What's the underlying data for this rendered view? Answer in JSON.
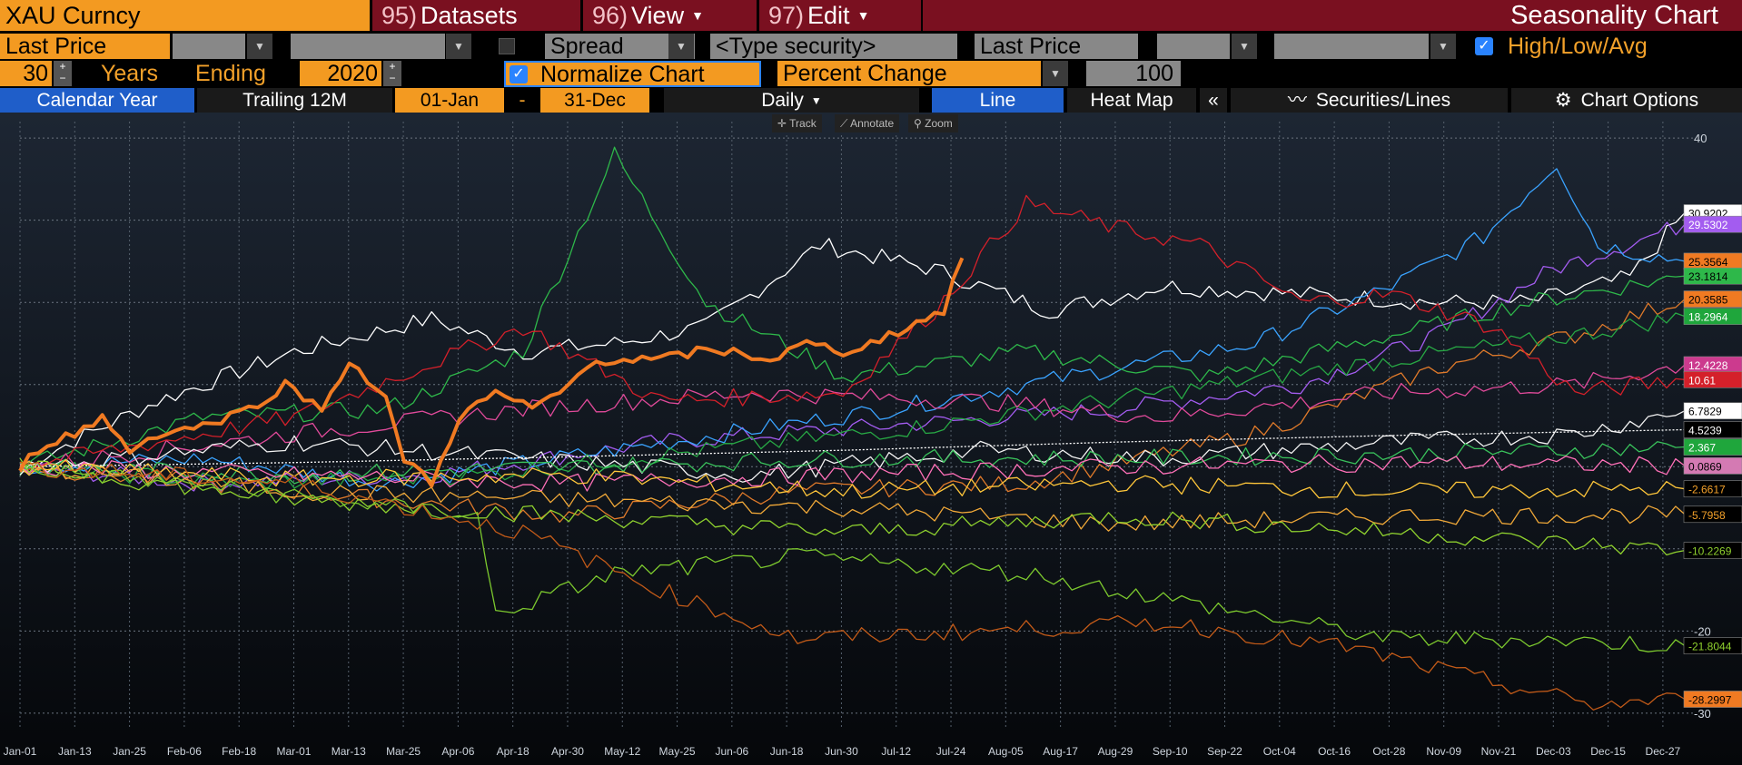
{
  "header": {
    "ticker": "XAU Curncy",
    "menus": [
      {
        "num": "95)",
        "label": "Datasets"
      },
      {
        "num": "96)",
        "label": "View"
      },
      {
        "num": "97)",
        "label": "Edit"
      }
    ],
    "title": "Seasonality Chart"
  },
  "row2": {
    "field1": "Last Price",
    "spread": "Spread",
    "security_placeholder": "<Type security>",
    "field2": "Last Price",
    "hla": "High/Low/Avg"
  },
  "row3": {
    "years": "30",
    "years_label": "Years",
    "ending_label": "Ending",
    "ending_year": "2020",
    "normalize": "Normalize Chart",
    "mode": "Percent Change",
    "base": "100"
  },
  "row4": {
    "calendar_year": "Calendar Year",
    "trailing": "Trailing 12M",
    "start": "01-Jan",
    "dash": "-",
    "end": "31-Dec",
    "freq": "Daily",
    "line": "Line",
    "heatmap": "Heat Map",
    "collapse": "«",
    "securities": "Securities/Lines",
    "options": "Chart Options"
  },
  "tools": {
    "track": "Track",
    "annotate": "Annotate",
    "zoom": "Zoom"
  },
  "chart_data": {
    "type": "line",
    "title": "Seasonality Chart",
    "xlabel": "",
    "ylabel": "",
    "ylim": [
      -32,
      42
    ],
    "y_ticks": [
      40,
      30,
      20,
      10,
      0,
      -10,
      -20,
      -30
    ],
    "y_tick_labels": [
      "40",
      "",
      "",
      "",
      "",
      "",
      "-20",
      "-30"
    ],
    "x_ticks": [
      "Jan-01",
      "Jan-13",
      "Jan-25",
      "Feb-06",
      "Feb-18",
      "Mar-01",
      "Mar-13",
      "Mar-25",
      "Apr-06",
      "Apr-18",
      "Apr-30",
      "May-12",
      "May-25",
      "Jun-06",
      "Jun-18",
      "Jun-30",
      "Jul-12",
      "Jul-24",
      "Aug-05",
      "Aug-17",
      "Aug-29",
      "Sep-10",
      "Sep-22",
      "Oct-04",
      "Oct-16",
      "Oct-28",
      "Nov-09",
      "Nov-21",
      "Dec-03",
      "Dec-15",
      "Dec-27"
    ],
    "series": [
      {
        "name": "2020",
        "color": "#f07a22",
        "bold": true,
        "points": [
          [
            0,
            0
          ],
          [
            6,
            3
          ],
          [
            12,
            4
          ],
          [
            18,
            6
          ],
          [
            24,
            2
          ],
          [
            30,
            4
          ],
          [
            40,
            5
          ],
          [
            50,
            7
          ],
          [
            58,
            10
          ],
          [
            66,
            7
          ],
          [
            72,
            13
          ],
          [
            80,
            8
          ],
          [
            84,
            1
          ],
          [
            90,
            -2
          ],
          [
            96,
            6
          ],
          [
            104,
            9
          ],
          [
            112,
            7
          ],
          [
            118,
            9
          ],
          [
            126,
            13
          ],
          [
            132,
            13
          ],
          [
            140,
            13
          ],
          [
            148,
            14
          ],
          [
            156,
            14
          ],
          [
            164,
            13
          ],
          [
            172,
            15
          ],
          [
            180,
            14
          ],
          [
            186,
            15
          ],
          [
            194,
            17
          ],
          [
            202,
            19
          ],
          [
            206,
            25.4
          ]
        ],
        "end_label": ""
      },
      {
        "name": "s-white-top",
        "color": "#ffffff",
        "points": [
          [
            0,
            0
          ],
          [
            30,
            8
          ],
          [
            60,
            14
          ],
          [
            90,
            18
          ],
          [
            110,
            14
          ],
          [
            130,
            15
          ],
          [
            150,
            17
          ],
          [
            175,
            27
          ],
          [
            200,
            24
          ],
          [
            225,
            19
          ],
          [
            250,
            22
          ],
          [
            280,
            21
          ],
          [
            310,
            20
          ],
          [
            330,
            20
          ],
          [
            352,
            23
          ],
          [
            364,
            30.9
          ]
        ],
        "end_label": "30.9202",
        "label_bg": "#ffffff",
        "label_fg": "#000"
      },
      {
        "name": "s-violet",
        "color": "#a35cf0",
        "points": [
          [
            0,
            0
          ],
          [
            40,
            -2
          ],
          [
            90,
            -1
          ],
          [
            140,
            3
          ],
          [
            190,
            5
          ],
          [
            240,
            7
          ],
          [
            280,
            10
          ],
          [
            310,
            16
          ],
          [
            335,
            24
          ],
          [
            364,
            29.5
          ]
        ],
        "end_label": "29.5302",
        "label_bg": "#a35cf0",
        "label_fg": "#fff"
      },
      {
        "name": "s-blue",
        "color": "#3aa3ff",
        "points": [
          [
            0,
            0
          ],
          [
            40,
            1
          ],
          [
            80,
            -2
          ],
          [
            130,
            2
          ],
          [
            190,
            7
          ],
          [
            240,
            12
          ],
          [
            270,
            15
          ],
          [
            300,
            22
          ],
          [
            320,
            28
          ],
          [
            336,
            37
          ],
          [
            345,
            27
          ],
          [
            364,
            25
          ]
        ],
        "end_label": "25.3564",
        "label_bg": "#f07a22",
        "label_fg": "#000"
      },
      {
        "name": "s-green2",
        "color": "#2eb84a",
        "points": [
          [
            0,
            0
          ],
          [
            40,
            6
          ],
          [
            80,
            7
          ],
          [
            110,
            14
          ],
          [
            130,
            38
          ],
          [
            150,
            20
          ],
          [
            180,
            11
          ],
          [
            220,
            14
          ],
          [
            260,
            11
          ],
          [
            300,
            16
          ],
          [
            330,
            20
          ],
          [
            364,
            23.2
          ]
        ],
        "end_label": "23.1814",
        "label_bg": "#2eb84a",
        "label_fg": "#000"
      },
      {
        "name": "s-orange2",
        "color": "#e07a2a",
        "points": [
          [
            0,
            0
          ],
          [
            60,
            -3
          ],
          [
            120,
            -6
          ],
          [
            170,
            -3
          ],
          [
            220,
            -2
          ],
          [
            270,
            4
          ],
          [
            310,
            12
          ],
          [
            340,
            16
          ],
          [
            364,
            20.4
          ]
        ],
        "end_label": "20.3585",
        "label_bg": "#f07a22",
        "label_fg": "#000"
      },
      {
        "name": "s-green",
        "color": "#27a844",
        "points": [
          [
            0,
            0
          ],
          [
            50,
            -2
          ],
          [
            100,
            -1
          ],
          [
            150,
            2
          ],
          [
            200,
            5
          ],
          [
            250,
            9
          ],
          [
            300,
            13
          ],
          [
            340,
            16
          ],
          [
            364,
            18.3
          ]
        ],
        "end_label": "18.2964",
        "label_bg": "#1fa63c",
        "label_fg": "#fff"
      },
      {
        "name": "s-magenta",
        "color": "#e04a9a",
        "points": [
          [
            0,
            0
          ],
          [
            60,
            4
          ],
          [
            110,
            7
          ],
          [
            160,
            9
          ],
          [
            210,
            8
          ],
          [
            250,
            6
          ],
          [
            300,
            9
          ],
          [
            340,
            10
          ],
          [
            364,
            12.4
          ]
        ],
        "end_label": "12.4228",
        "label_bg": "#cc3a8e",
        "label_fg": "#fff"
      },
      {
        "name": "s-red",
        "color": "#d4202a",
        "points": [
          [
            0,
            0
          ],
          [
            60,
            6
          ],
          [
            110,
            17
          ],
          [
            140,
            8
          ],
          [
            180,
            9
          ],
          [
            200,
            19
          ],
          [
            220,
            32
          ],
          [
            240,
            29
          ],
          [
            258,
            27
          ],
          [
            280,
            20
          ],
          [
            300,
            21
          ],
          [
            322,
            17
          ],
          [
            340,
            9
          ],
          [
            364,
            10.6
          ]
        ],
        "end_label": "10.61",
        "label_bg": "#d4202a",
        "label_fg": "#fff"
      },
      {
        "name": "s-white2",
        "color": "#f2f2f2",
        "points": [
          [
            0,
            0
          ],
          [
            60,
            3
          ],
          [
            110,
            1
          ],
          [
            160,
            -1
          ],
          [
            210,
            2
          ],
          [
            250,
            1
          ],
          [
            300,
            3
          ],
          [
            340,
            4
          ],
          [
            364,
            6.8
          ]
        ],
        "end_label": "6.7829",
        "label_bg": "#ffffff",
        "label_fg": "#000"
      },
      {
        "name": "avg",
        "color": "#ffffff",
        "dashed": true,
        "points": [
          [
            0,
            0
          ],
          [
            60,
            0.5
          ],
          [
            120,
            1.2
          ],
          [
            180,
            2
          ],
          [
            240,
            3
          ],
          [
            300,
            3.8
          ],
          [
            364,
            4.5
          ]
        ],
        "end_label": "4.5239",
        "label_bg": "#000",
        "label_fg": "#fff"
      },
      {
        "name": "s-green3",
        "color": "#39c25b",
        "points": [
          [
            0,
            0
          ],
          [
            60,
            -1
          ],
          [
            120,
            0
          ],
          [
            180,
            1
          ],
          [
            240,
            1
          ],
          [
            300,
            1.5
          ],
          [
            364,
            2.4
          ]
        ],
        "end_label": "2.367",
        "label_bg": "#1fa63c",
        "label_fg": "#fff"
      },
      {
        "name": "s-pink",
        "color": "#ff70b8",
        "points": [
          [
            0,
            0
          ],
          [
            60,
            -1
          ],
          [
            120,
            -2
          ],
          [
            180,
            -1
          ],
          [
            240,
            0
          ],
          [
            300,
            0.5
          ],
          [
            364,
            0.1
          ]
        ],
        "end_label": "0.0869",
        "label_bg": "#d47ab3",
        "label_fg": "#000"
      },
      {
        "name": "s-yellow",
        "color": "#ffc63a",
        "points": [
          [
            0,
            0
          ],
          [
            60,
            -1.5
          ],
          [
            120,
            -1
          ],
          [
            180,
            -3
          ],
          [
            240,
            -2
          ],
          [
            300,
            -3
          ],
          [
            364,
            -2.7
          ]
        ],
        "end_label": "-2.6617",
        "label_bg": "#000",
        "label_fg": "#f3a12a"
      },
      {
        "name": "s-gold",
        "color": "#f0a838",
        "points": [
          [
            0,
            0
          ],
          [
            60,
            -3
          ],
          [
            120,
            -4
          ],
          [
            180,
            -5
          ],
          [
            240,
            -7
          ],
          [
            300,
            -6
          ],
          [
            364,
            -5.8
          ]
        ],
        "end_label": "-5.7958",
        "label_bg": "#000",
        "label_fg": "#f3a12a"
      },
      {
        "name": "s-lime",
        "color": "#8fd12e",
        "points": [
          [
            0,
            0
          ],
          [
            60,
            -4
          ],
          [
            120,
            -6
          ],
          [
            180,
            -8
          ],
          [
            240,
            -6
          ],
          [
            300,
            -8
          ],
          [
            364,
            -10.2
          ]
        ],
        "end_label": "-10.2269",
        "label_bg": "#000",
        "label_fg": "#8fd12e"
      },
      {
        "name": "s-lime2",
        "color": "#7cc82e",
        "points": [
          [
            0,
            0
          ],
          [
            50,
            -3
          ],
          [
            100,
            -6
          ],
          [
            104,
            -18
          ],
          [
            130,
            -13
          ],
          [
            170,
            -11
          ],
          [
            220,
            -13
          ],
          [
            260,
            -17
          ],
          [
            300,
            -21
          ],
          [
            330,
            -21
          ],
          [
            364,
            -21.8
          ]
        ],
        "end_label": "-21.8044",
        "label_bg": "#000",
        "label_fg": "#8fd12e"
      },
      {
        "name": "s-brown",
        "color": "#c25a18",
        "points": [
          [
            0,
            0
          ],
          [
            60,
            -2
          ],
          [
            110,
            -8
          ],
          [
            140,
            -15
          ],
          [
            170,
            -21
          ],
          [
            210,
            -20
          ],
          [
            250,
            -19
          ],
          [
            290,
            -22
          ],
          [
            320,
            -26
          ],
          [
            344,
            -29
          ],
          [
            364,
            -28.3
          ]
        ],
        "end_label": "-28.2997",
        "label_bg": "#f07a22",
        "label_fg": "#000"
      }
    ]
  }
}
